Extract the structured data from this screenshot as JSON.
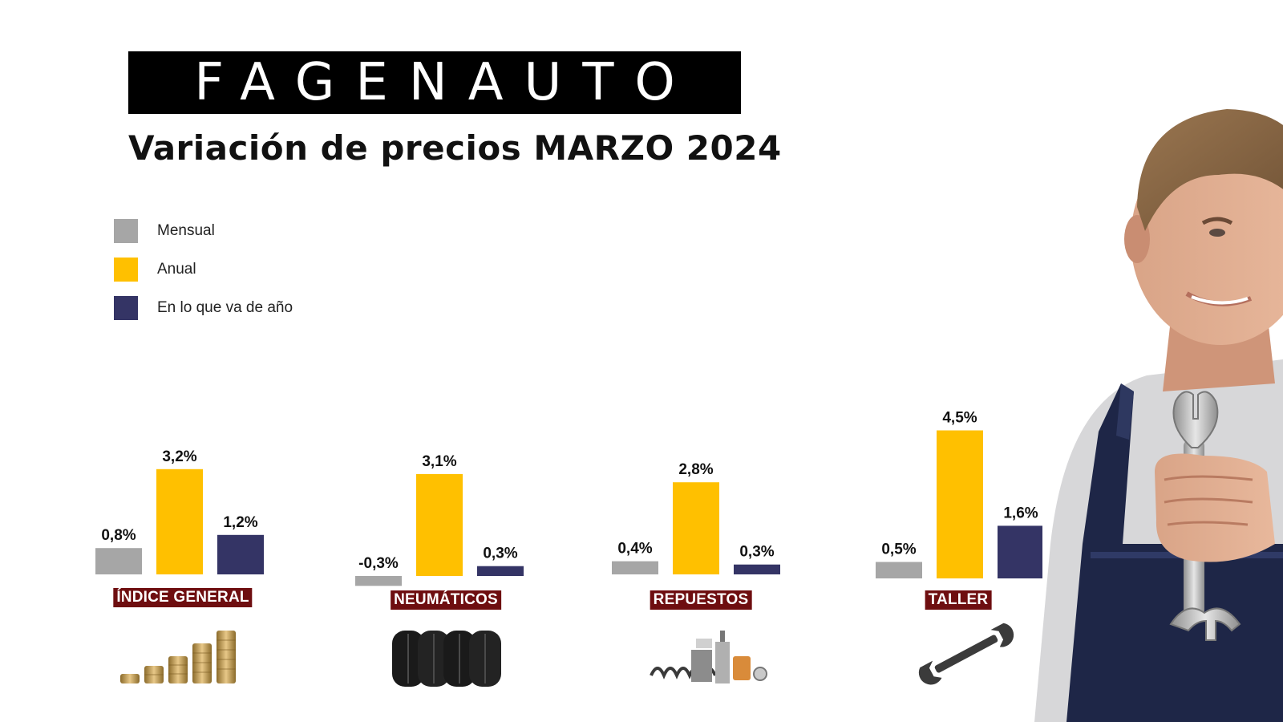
{
  "brand": {
    "logo_text": "FAGENAUTO",
    "logo_bg": "#000000",
    "logo_fg": "#ffffff"
  },
  "title": "Variación de precios MARZO 2024",
  "legend": [
    {
      "label": "Mensual",
      "color": "#a6a6a6"
    },
    {
      "label": "Anual",
      "color": "#ffc000"
    },
    {
      "label": "En lo que va de año",
      "color": "#343465"
    }
  ],
  "chart_data": {
    "type": "bar",
    "title": "Variación de precios MARZO 2024",
    "categories": [
      "ÍNDICE GENERAL",
      "NEUMÁTICOS",
      "REPUESTOS",
      "TALLER"
    ],
    "series": [
      {
        "name": "Mensual",
        "values": [
          0.8,
          -0.3,
          0.4,
          0.5
        ],
        "labels": [
          "0,8%",
          "-0,3%",
          "0,4%",
          "0,5%"
        ]
      },
      {
        "name": "Anual",
        "values": [
          3.2,
          3.1,
          2.8,
          4.5
        ],
        "labels": [
          "3,2%",
          "3,1%",
          "2,8%",
          "4,5%"
        ]
      },
      {
        "name": "En lo que va de año",
        "values": [
          1.2,
          0.3,
          0.3,
          1.6
        ],
        "labels": [
          "1,2%",
          "0,3%",
          "0,3%",
          "1,6%"
        ]
      }
    ],
    "legend_position": "top-left",
    "grid": false,
    "category_label_bg": "#6e0e10",
    "category_icons": [
      "coins-stack-icon",
      "tires-icon",
      "car-parts-icon",
      "wrench-icon"
    ]
  }
}
